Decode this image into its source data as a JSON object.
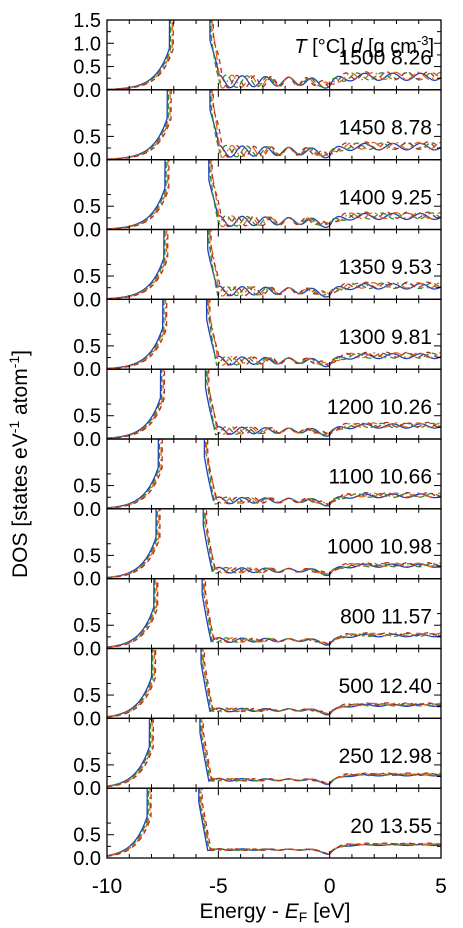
{
  "chart_data": {
    "type": "line",
    "xlabel_main": "Energy - ",
    "xlabel_var": "E",
    "xlabel_sub": "F",
    "xlabel_unit": " [eV]",
    "ylabel_main": "DOS [states eV",
    "ylabel_sup1": "-1",
    "ylabel_mid": " atom",
    "ylabel_sup2": "-1",
    "ylabel_end": "]",
    "header_T": "T",
    "header_T_unit": " [°C] ",
    "header_d": "d",
    "header_d_unit": " [g cm",
    "header_d_sup": "-3",
    "header_d_end": "]",
    "xlim": [
      -10,
      5
    ],
    "ylim": [
      0,
      1.5
    ],
    "xticks": [
      -10,
      -5,
      0,
      5
    ],
    "xtick_labels": [
      "-10",
      "-5",
      "0",
      "5"
    ],
    "yticks_top": [
      0.0,
      0.5,
      1.0,
      1.5
    ],
    "yticks_top_labels": [
      "0.0",
      "0.5",
      "1.0",
      "1.5"
    ],
    "yticks": [
      0.0,
      0.5
    ],
    "yticks_labels": [
      "0.0",
      "0.5"
    ],
    "line_colors": [
      "#1f3fbf",
      "#2e8b2e",
      "#e06a1a",
      "#b03020"
    ],
    "panels": [
      {
        "label": "1500 8.26",
        "T": 1500,
        "d": 8.26,
        "left_edge": -7.1,
        "right_edge": -5.3
      },
      {
        "label": "1450 8.78",
        "T": 1450,
        "d": 8.78,
        "left_edge": -7.2,
        "right_edge": -5.3
      },
      {
        "label": "1400 9.25",
        "T": 1400,
        "d": 9.25,
        "left_edge": -7.3,
        "right_edge": -5.35
      },
      {
        "label": "1350 9.53",
        "T": 1350,
        "d": 9.53,
        "left_edge": -7.35,
        "right_edge": -5.4
      },
      {
        "label": "1300 9.81",
        "T": 1300,
        "d": 9.81,
        "left_edge": -7.4,
        "right_edge": -5.45
      },
      {
        "label": "1200 10.26",
        "T": 1200,
        "d": 10.26,
        "left_edge": -7.5,
        "right_edge": -5.5
      },
      {
        "label": "1100 10.66",
        "T": 1100,
        "d": 10.66,
        "left_edge": -7.6,
        "right_edge": -5.55
      },
      {
        "label": "1000 10.98",
        "T": 1000,
        "d": 10.98,
        "left_edge": -7.7,
        "right_edge": -5.6
      },
      {
        "label": "800 11.57",
        "T": 800,
        "d": 11.57,
        "left_edge": -7.8,
        "right_edge": -5.65
      },
      {
        "label": "500 12.40",
        "T": 500,
        "d": 12.4,
        "left_edge": -7.9,
        "right_edge": -5.7
      },
      {
        "label": "250 12.98",
        "T": 250,
        "d": 12.98,
        "left_edge": -8.0,
        "right_edge": -5.75
      },
      {
        "label": "20 13.55",
        "T": 20,
        "d": 13.55,
        "left_edge": -8.1,
        "right_edge": -5.8
      }
    ]
  }
}
